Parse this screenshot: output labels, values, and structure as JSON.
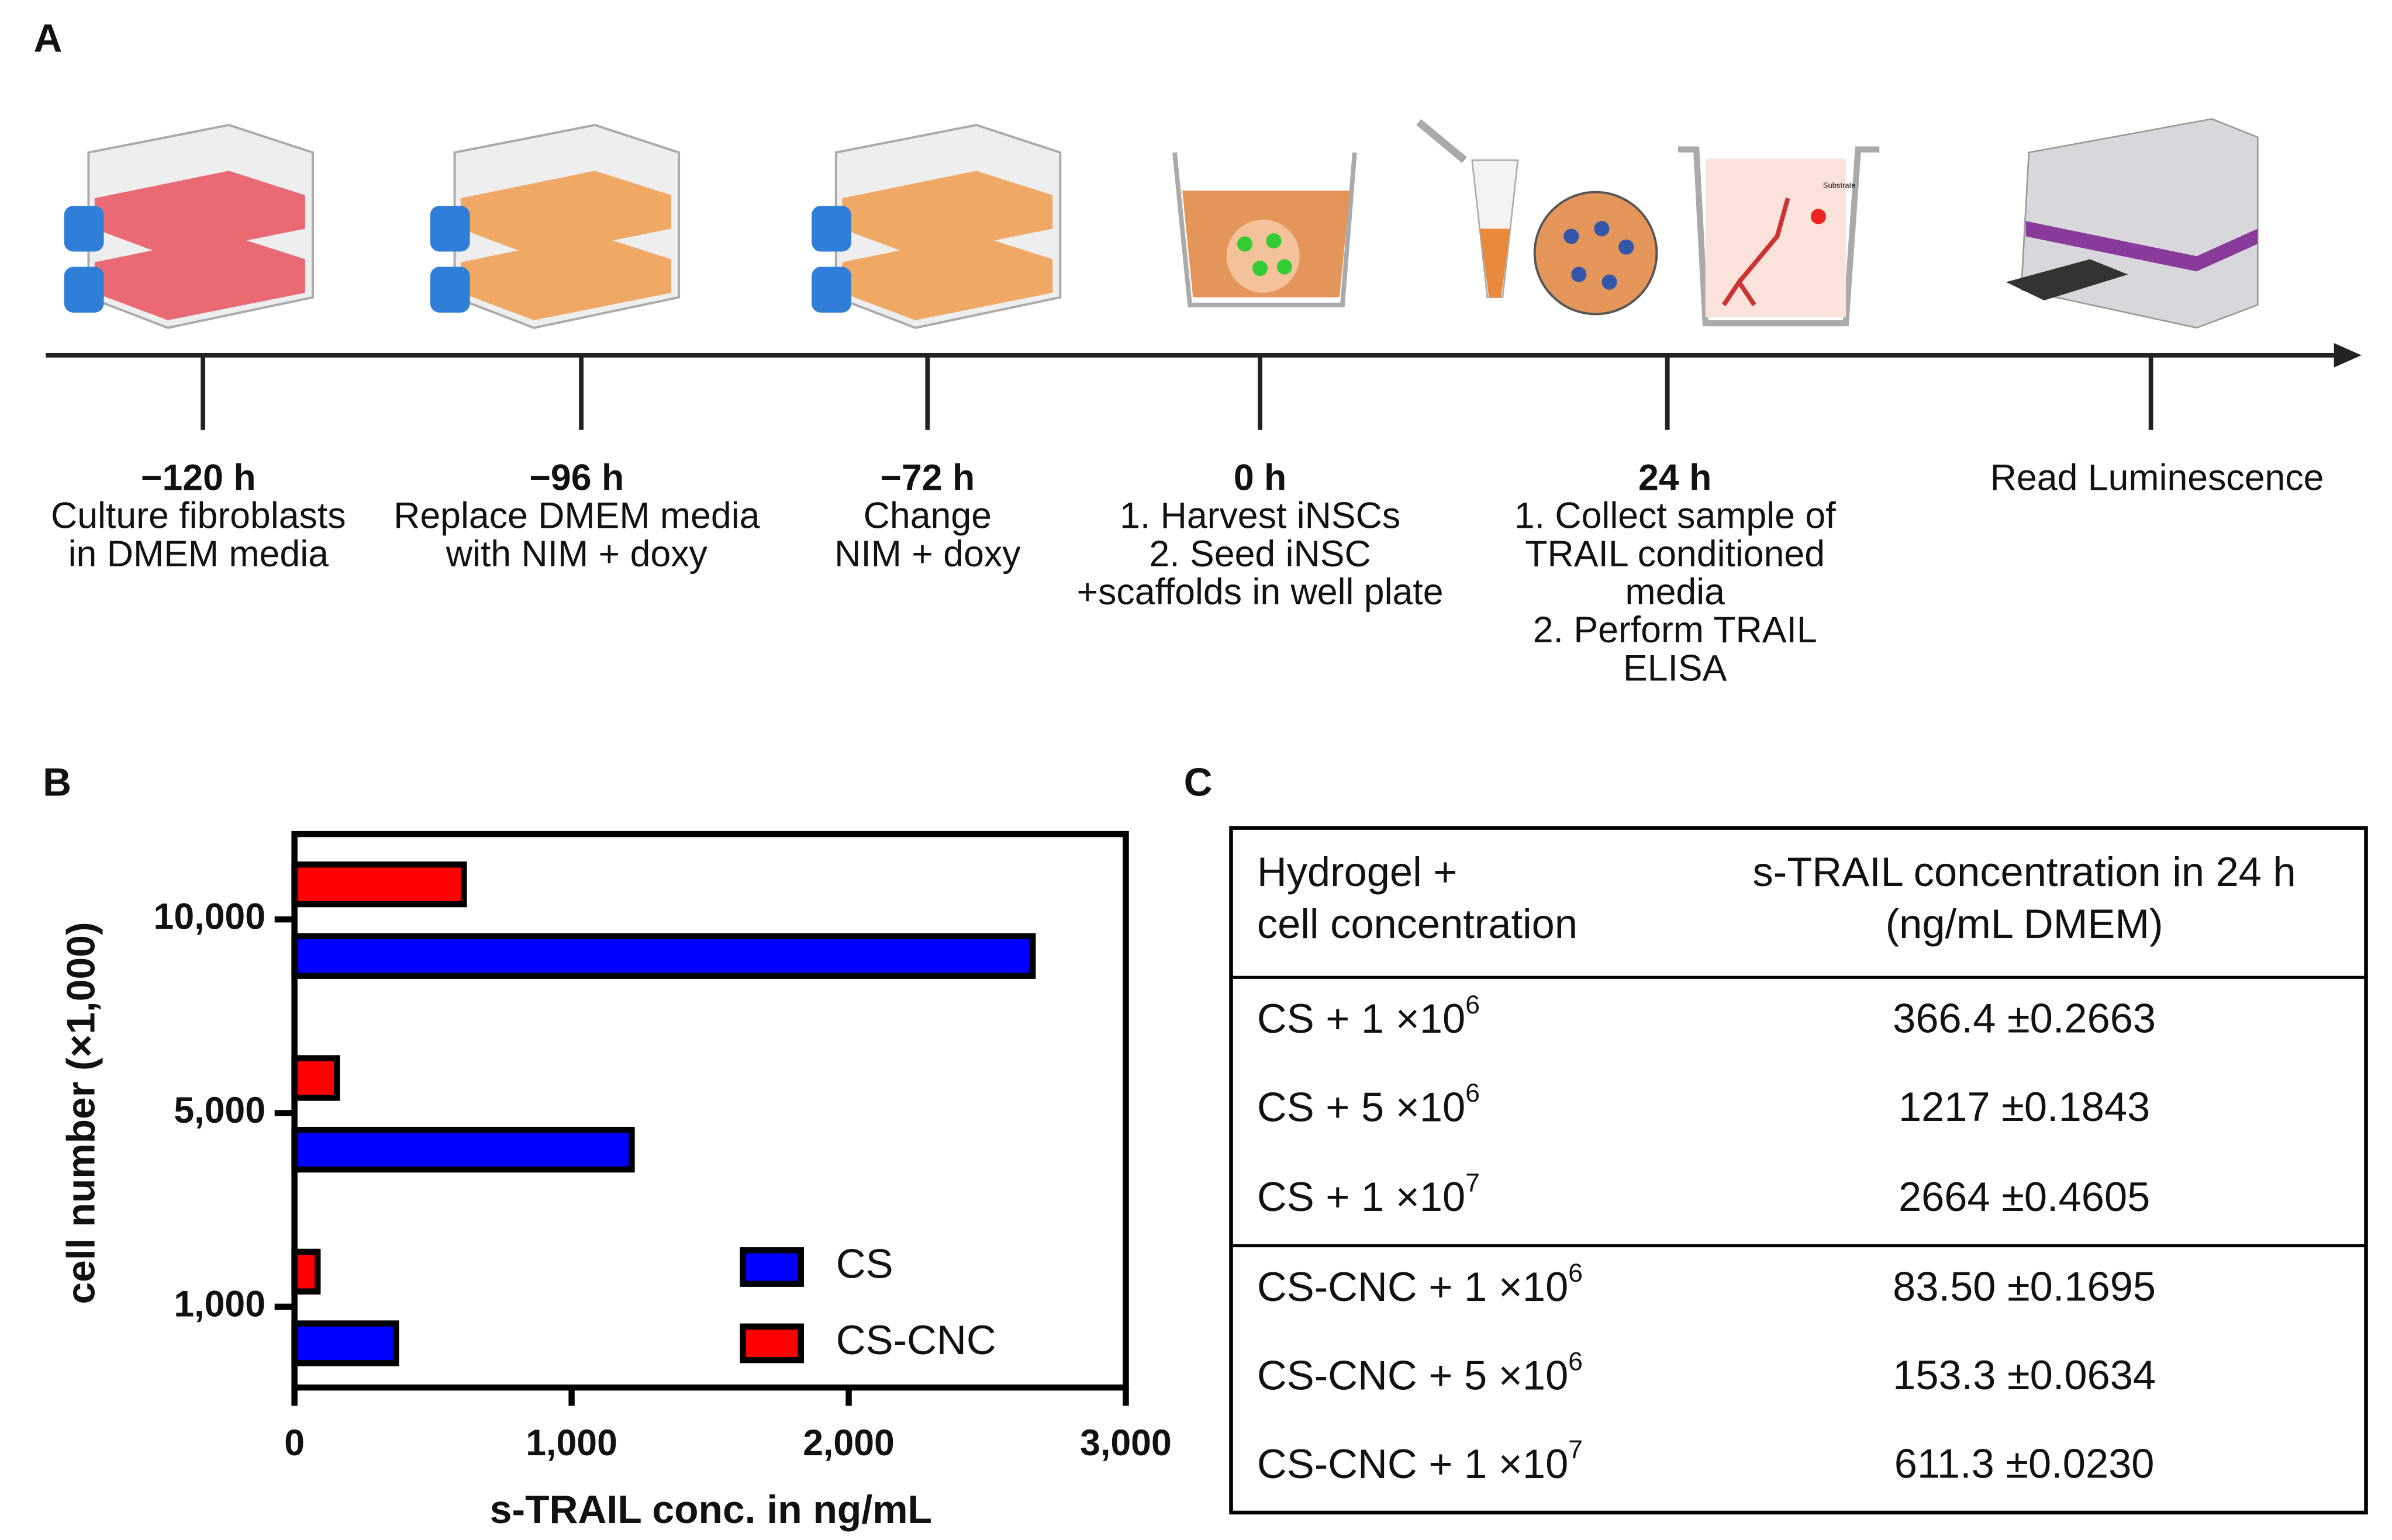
{
  "panel_labels": {
    "a": "A",
    "b": "B",
    "c": "C"
  },
  "timeline": {
    "substrate_label": "Substrate",
    "steps": [
      {
        "time": "−120 h",
        "lines": [
          "Culture fibroblasts",
          "in DMEM media"
        ]
      },
      {
        "time": "−96 h",
        "lines": [
          "Replace DMEM media",
          "with NIM + doxy"
        ]
      },
      {
        "time": "−72 h",
        "lines": [
          "Change",
          "NIM + doxy"
        ]
      },
      {
        "time": "0 h",
        "lines": [
          "1. Harvest iNSCs",
          "2. Seed iNSC",
          "+scaffolds in well plate"
        ]
      },
      {
        "time": "24 h",
        "lines": [
          "1. Collect sample of",
          "TRAIL conditioned",
          "media",
          "2. Perform TRAIL",
          "ELISA"
        ]
      },
      {
        "lines": [
          "Read Luminescence"
        ]
      }
    ]
  },
  "chart_data": {
    "type": "bar",
    "orientation": "horizontal",
    "xlabel": "s-TRAIL conc. in ng/mL",
    "ylabel": "cell number (×1,000)",
    "categories": [
      "1,000",
      "5,000",
      "10,000"
    ],
    "series": [
      {
        "name": "CS",
        "color": "#0000ff",
        "values": [
          366.4,
          1217,
          2664
        ]
      },
      {
        "name": "CS-CNC",
        "color": "#ff0000",
        "values": [
          83.5,
          153.3,
          611.3
        ]
      }
    ],
    "xlim": [
      0,
      3000
    ],
    "xticks": [
      0,
      {
        "value": 1000,
        "label": "1,000"
      },
      {
        "value": 2000,
        "label": "2,000"
      },
      {
        "value": 3000,
        "label": "3,000"
      }
    ],
    "legend": "lower right",
    "grid": false
  },
  "table": {
    "header": [
      [
        "Hydrogel +",
        "cell concentration"
      ],
      [
        "s-TRAIL concentration in 24 h",
        "(ng/mL DMEM)"
      ]
    ],
    "groups": [
      [
        {
          "label": "CS + 1 ×10",
          "exp": "6",
          "value": "366.4 ±0.2663"
        },
        {
          "label": "CS + 5 ×10",
          "exp": "6",
          "value": "1217 ±0.1843"
        },
        {
          "label": "CS + 1 ×10",
          "exp": "7",
          "value": "2664 ±0.4605"
        }
      ],
      [
        {
          "label": "CS-CNC + 1 ×10",
          "exp": "6",
          "value": "83.50 ±0.1695"
        },
        {
          "label": "CS-CNC + 5 ×10",
          "exp": "6",
          "value": "153.3 ±0.0634"
        },
        {
          "label": "CS-CNC + 1 ×10",
          "exp": "7",
          "value": "611.3 ±0.0230"
        }
      ]
    ]
  }
}
